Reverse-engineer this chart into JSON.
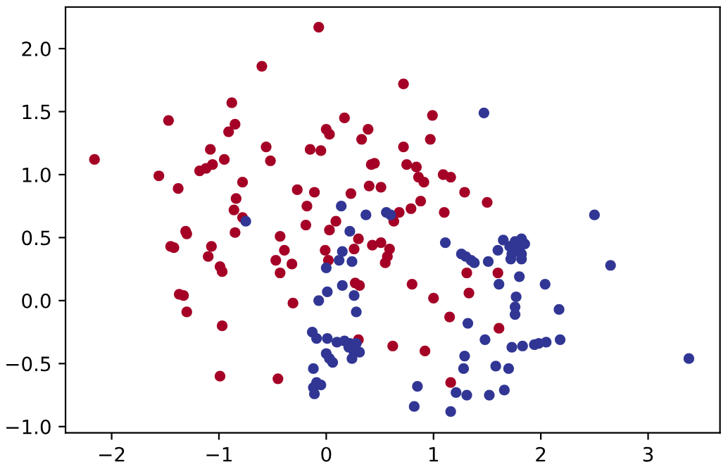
{
  "chart_data": {
    "type": "scatter",
    "xlim": [
      -2.43,
      3.67
    ],
    "ylim": [
      -1.05,
      2.33
    ],
    "xticks": [
      {
        "value": -2,
        "label": "−2"
      },
      {
        "value": -1,
        "label": "−1"
      },
      0,
      1,
      2,
      3
    ],
    "yticks": [
      {
        "value": -1.0,
        "label": "−1.0"
      },
      {
        "value": -0.5,
        "label": "−0.5"
      },
      {
        "value": 0.0,
        "label": "0.0"
      },
      {
        "value": 0.5,
        "label": "0.5"
      },
      {
        "value": 1.0,
        "label": "1.0"
      },
      {
        "value": 1.5,
        "label": "1.5"
      },
      {
        "value": 2.0,
        "label": "2.0"
      }
    ],
    "grid": false,
    "marker": "circle",
    "series": [
      {
        "color": "#a50026",
        "x": [
          -2.16,
          -1.47,
          -1.56,
          -1.38,
          -1.18,
          -1.12,
          -1.06,
          -1.08,
          -0.95,
          -0.91,
          -0.85,
          -0.88,
          -0.6,
          -0.56,
          -0.52,
          -0.78,
          -0.84,
          -0.86,
          -0.78,
          -0.07,
          0.72,
          0.99,
          0.17,
          0.0,
          0.03,
          0.39,
          0.33,
          0.97,
          0.72,
          -0.15,
          -0.05,
          0.42,
          0.45,
          0.75,
          0.84,
          0.86,
          0.91,
          1.09,
          1.16,
          1.29,
          1.5,
          1.1,
          0.88,
          0.79,
          0.68,
          0.63,
          0.4,
          0.51,
          0.23,
          -0.27,
          -0.11,
          -0.18,
          0.09,
          -0.19,
          -1.31,
          -1.3,
          -1.45,
          -1.42,
          -1.07,
          -1.1,
          -0.99,
          -0.97,
          -0.85,
          -0.43,
          -0.47,
          -0.43,
          -1.37,
          -1.33,
          -1.3,
          -0.97,
          -0.99,
          -0.45,
          0.03,
          -0.39,
          -0.32,
          -0.01,
          0.02,
          0.3,
          0.26,
          0.43,
          0.51,
          0.59,
          0.57,
          0.55,
          0.27,
          0.31,
          0.8,
          1.0,
          1.31,
          1.33,
          1.15,
          1.61,
          -0.31,
          0.62,
          0.92,
          0.3,
          1.16,
          1.6
        ],
        "values": [
          1.12,
          1.43,
          0.99,
          0.89,
          1.03,
          1.05,
          1.08,
          1.2,
          1.12,
          1.34,
          1.4,
          1.57,
          1.86,
          1.22,
          1.11,
          0.94,
          0.81,
          0.72,
          0.66,
          2.17,
          1.72,
          1.47,
          1.45,
          1.36,
          1.32,
          1.36,
          1.28,
          1.28,
          1.22,
          1.2,
          1.19,
          1.08,
          1.09,
          1.08,
          1.06,
          0.98,
          0.94,
          1.0,
          0.98,
          0.86,
          0.78,
          0.7,
          0.79,
          0.73,
          0.7,
          0.63,
          0.91,
          0.9,
          0.85,
          0.88,
          0.86,
          0.75,
          0.63,
          0.6,
          0.55,
          0.53,
          0.43,
          0.42,
          0.43,
          0.35,
          0.27,
          0.23,
          0.54,
          0.51,
          0.32,
          0.22,
          0.05,
          0.04,
          -0.09,
          -0.2,
          -0.6,
          -0.62,
          0.56,
          0.4,
          0.29,
          0.4,
          0.32,
          0.49,
          0.41,
          0.44,
          0.46,
          0.41,
          0.35,
          0.3,
          0.14,
          0.12,
          0.13,
          0.02,
          0.22,
          0.06,
          -0.13,
          -0.22,
          -0.02,
          -0.36,
          -0.4,
          -0.31,
          -0.65,
          0.22
        ]
      },
      {
        "color": "#313695",
        "x": [
          -0.75,
          1.47,
          0.14,
          0.37,
          0.56,
          0.6,
          2.5,
          0.22,
          0.15,
          0.12,
          0.24,
          0.0,
          0.15,
          0.01,
          -0.07,
          0.26,
          0.28,
          -0.13,
          -0.09,
          0.01,
          0.1,
          0.17,
          0.22,
          0.28,
          0.21,
          0.26,
          0.31,
          0.24,
          0.0,
          0.03,
          0.06,
          -0.12,
          -0.09,
          -0.12,
          -0.11,
          -0.05,
          1.11,
          1.26,
          1.3,
          1.35,
          1.38,
          1.51,
          1.6,
          1.61,
          1.32,
          1.48,
          1.29,
          1.28,
          1.58,
          0.85,
          0.82,
          1.21,
          1.31,
          1.16,
          1.52,
          1.65,
          1.71,
          1.82,
          1.85,
          1.8,
          1.73,
          1.82,
          1.72,
          1.82,
          1.76,
          2.65,
          1.8,
          2.04,
          1.77,
          1.76,
          1.76,
          2.17,
          2.18,
          2.05,
          1.98,
          1.94,
          1.83,
          1.73,
          1.7,
          1.66,
          3.38
        ],
        "values": [
          0.63,
          1.49,
          0.75,
          0.68,
          0.7,
          0.68,
          0.68,
          0.55,
          0.39,
          0.32,
          0.31,
          0.26,
          0.12,
          0.07,
          0.0,
          0.04,
          -0.09,
          -0.25,
          -0.3,
          -0.3,
          -0.33,
          -0.32,
          -0.34,
          -0.34,
          -0.37,
          -0.41,
          -0.41,
          -0.46,
          -0.42,
          -0.46,
          -0.49,
          -0.54,
          -0.65,
          -0.69,
          -0.74,
          -0.67,
          0.46,
          0.37,
          0.35,
          0.32,
          0.3,
          0.31,
          0.4,
          0.13,
          -0.18,
          -0.31,
          -0.44,
          -0.54,
          -0.52,
          -0.68,
          -0.84,
          -0.73,
          -0.75,
          -0.88,
          -0.75,
          0.48,
          0.43,
          0.49,
          0.45,
          0.41,
          0.37,
          0.37,
          0.33,
          0.33,
          0.47,
          0.28,
          0.19,
          0.13,
          0.03,
          -0.05,
          -0.11,
          -0.07,
          -0.31,
          -0.33,
          -0.34,
          -0.35,
          -0.36,
          -0.37,
          -0.54,
          -0.71,
          -0.46
        ]
      }
    ]
  }
}
